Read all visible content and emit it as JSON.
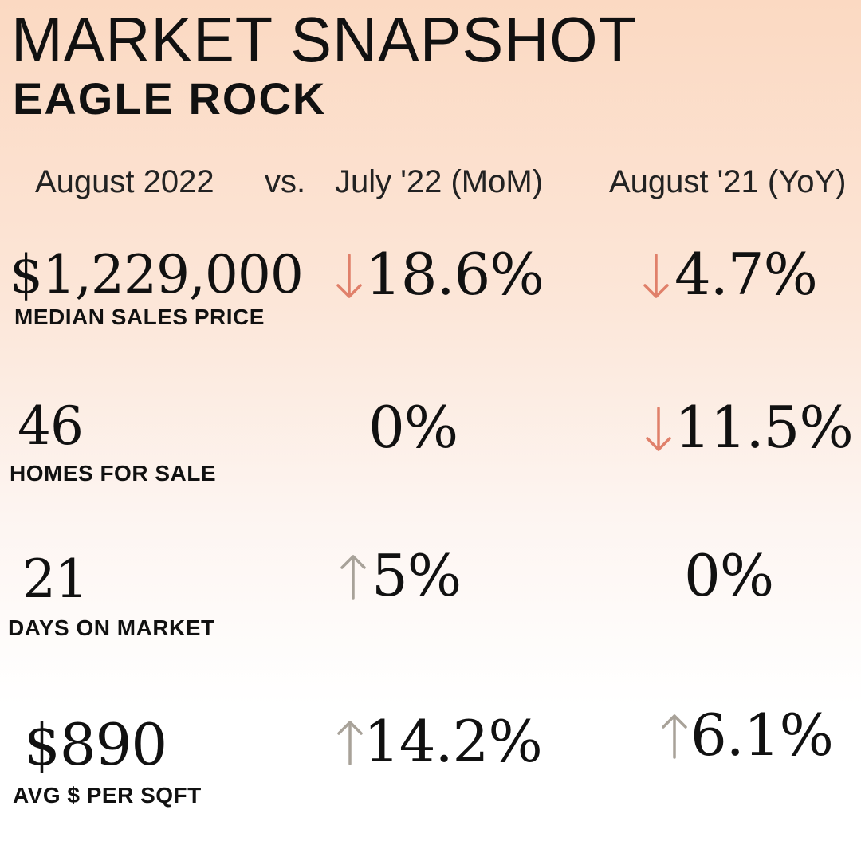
{
  "title": "MARKET SNAPSHOT",
  "subtitle": "EAGLE ROCK",
  "headers": {
    "current": "August 2022",
    "vs": "vs.",
    "mom": "July '22 (MoM)",
    "yoy": "August '21 (YoY)"
  },
  "colors": {
    "down": "#e0806a",
    "up": "#a8a299",
    "text": "#111111"
  },
  "rows": [
    {
      "value": "$1,229,000",
      "label": "MEDIAN SALES PRICE",
      "mom": "18.6%",
      "mom_dir": "down",
      "yoy": "4.7%",
      "yoy_dir": "down"
    },
    {
      "value": "46",
      "label": "HOMES FOR SALE",
      "mom": "0%",
      "mom_dir": "none",
      "yoy": "11.5%",
      "yoy_dir": "down"
    },
    {
      "value": "21",
      "label": "DAYS ON MARKET",
      "mom": "5%",
      "mom_dir": "up",
      "yoy": "0%",
      "yoy_dir": "none"
    },
    {
      "value": "$890",
      "label": "AVG $ PER SQFT",
      "mom": "14.2%",
      "mom_dir": "up",
      "yoy": "6.1%",
      "yoy_dir": "up"
    }
  ]
}
